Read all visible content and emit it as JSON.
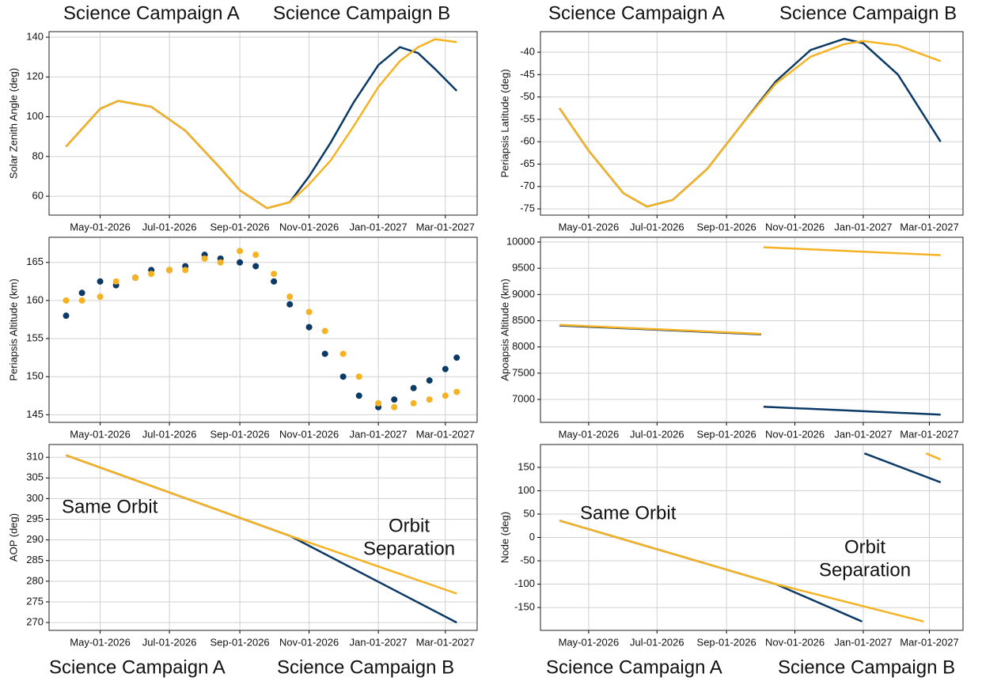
{
  "campaign_labels": [
    "Science Campaign A",
    "Science Campaign B",
    "Science Campaign A",
    "Science Campaign B",
    "Science Campaign A",
    "Science Campaign B",
    "Science Campaign A",
    "Science Campaign B"
  ],
  "chart_data": [
    {
      "type": "line",
      "y_label": "Solar Zenith Angle (deg)",
      "xlim": [
        "2026-03-17",
        "2027-03-29"
      ],
      "xticks": [
        {
          "value": "2026-05-01",
          "label": "May-01-2026"
        },
        {
          "value": "2026-07-01",
          "label": "Jul-01-2026"
        },
        {
          "value": "2026-09-01",
          "label": "Sep-01-2026"
        },
        {
          "value": "2026-11-01",
          "label": "Nov-01-2026"
        },
        {
          "value": "2027-01-01",
          "label": "Jan-01-2027"
        },
        {
          "value": "2027-03-01",
          "label": "Mar-01-2027"
        }
      ],
      "ylim": [
        50.5,
        142.8
      ],
      "yticks": [
        60,
        80,
        100,
        120,
        140
      ],
      "grid": true,
      "series": [
        {
          "color": "#0b3a66",
          "x": [
            "2026-04-01",
            "2026-05-01",
            "2026-05-17",
            "2026-06-15",
            "2026-07-15",
            "2026-08-15",
            "2026-09-01",
            "2026-09-25",
            "2026-10-15",
            "2026-11-01",
            "2026-11-20",
            "2026-12-10",
            "2027-01-01",
            "2027-01-20",
            "2027-02-05",
            "2027-02-20",
            "2027-03-11"
          ],
          "values": [
            85,
            104,
            108,
            105,
            93,
            74,
            63,
            54,
            57,
            70,
            87,
            107,
            126,
            135,
            132,
            124,
            113
          ]
        },
        {
          "color": "#f5b324",
          "x": [
            "2026-04-01",
            "2026-05-01",
            "2026-05-17",
            "2026-06-15",
            "2026-07-15",
            "2026-08-15",
            "2026-09-01",
            "2026-09-25",
            "2026-10-15",
            "2026-11-01",
            "2026-11-20",
            "2026-12-10",
            "2027-01-01",
            "2027-01-20",
            "2027-02-05",
            "2027-02-20",
            "2027-03-11"
          ],
          "values": [
            85,
            104,
            108,
            105,
            93,
            74,
            63,
            54,
            57,
            66,
            78,
            95,
            115,
            128,
            135,
            139,
            137.5
          ]
        }
      ]
    },
    {
      "type": "line",
      "y_label": "Periapsis Latitude (deg)",
      "xlim": [
        "2026-03-19",
        "2027-03-31"
      ],
      "xticks": [
        {
          "value": "2026-05-01",
          "label": "May-01-2026"
        },
        {
          "value": "2026-07-01",
          "label": "Jul-01-2026"
        },
        {
          "value": "2026-09-01",
          "label": "Sep-01-2026"
        },
        {
          "value": "2026-11-01",
          "label": "Nov-01-2026"
        },
        {
          "value": "2027-01-01",
          "label": "Jan-01-2027"
        },
        {
          "value": "2027-03-01",
          "label": "Mar-01-2027"
        }
      ],
      "ylim": [
        -76.4,
        -35.4
      ],
      "yticks": [
        -75,
        -70,
        -65,
        -60,
        -55,
        -50,
        -45,
        -40
      ],
      "grid": true,
      "series": [
        {
          "color": "#0b3a66",
          "x": [
            "2026-04-05",
            "2026-05-01",
            "2026-06-01",
            "2026-06-22",
            "2026-07-15",
            "2026-08-15",
            "2026-09-15",
            "2026-10-15",
            "2026-11-15",
            "2026-12-15",
            "2027-01-01",
            "2027-02-01",
            "2027-03-11"
          ],
          "values": [
            -52.5,
            -62,
            -71.5,
            -74.5,
            -73,
            -66,
            -56,
            -46.5,
            -39.5,
            -37,
            -38,
            -45,
            -60
          ]
        },
        {
          "color": "#f5b324",
          "x": [
            "2026-04-05",
            "2026-05-01",
            "2026-06-01",
            "2026-06-22",
            "2026-07-15",
            "2026-08-15",
            "2026-09-15",
            "2026-10-15",
            "2026-11-15",
            "2026-12-15",
            "2027-01-01",
            "2027-02-01",
            "2027-03-11"
          ],
          "values": [
            -52.5,
            -62,
            -71.5,
            -74.5,
            -73,
            -66,
            -56,
            -47,
            -41,
            -38.2,
            -37.5,
            -38.5,
            -42
          ]
        }
      ]
    },
    {
      "type": "scatter",
      "y_label": "Periapsis Altitude (km)",
      "xlim": [
        "2026-03-17",
        "2027-03-29"
      ],
      "xticks": [
        {
          "value": "2026-05-01",
          "label": "May-01-2026"
        },
        {
          "value": "2026-07-01",
          "label": "Jul-01-2026"
        },
        {
          "value": "2026-09-01",
          "label": "Sep-01-2026"
        },
        {
          "value": "2026-11-01",
          "label": "Nov-01-2026"
        },
        {
          "value": "2027-01-01",
          "label": "Jan-01-2027"
        },
        {
          "value": "2027-03-01",
          "label": "Mar-01-2027"
        }
      ],
      "ylim": [
        144,
        168.3
      ],
      "yticks": [
        145,
        150,
        155,
        160,
        165
      ],
      "grid": true,
      "series": [
        {
          "color": "#0b3a66",
          "x": [
            "2026-04-01",
            "2026-04-15",
            "2026-05-01",
            "2026-05-15",
            "2026-06-01",
            "2026-06-15",
            "2026-07-01",
            "2026-07-15",
            "2026-08-01",
            "2026-08-15",
            "2026-09-01",
            "2026-09-15",
            "2026-10-01",
            "2026-10-15",
            "2026-11-01",
            "2026-11-15",
            "2026-12-01",
            "2026-12-15",
            "2027-01-01",
            "2027-01-15",
            "2027-02-01",
            "2027-02-15",
            "2027-03-01",
            "2027-03-11"
          ],
          "values": [
            158,
            161,
            162.5,
            162,
            163,
            164,
            164,
            164.5,
            166,
            165.5,
            165,
            164.5,
            162.5,
            159.5,
            156.5,
            153,
            150,
            147.5,
            146,
            147,
            148.5,
            149.5,
            151,
            152.5
          ]
        },
        {
          "color": "#f5b324",
          "x": [
            "2026-04-01",
            "2026-04-15",
            "2026-05-01",
            "2026-05-15",
            "2026-06-01",
            "2026-06-15",
            "2026-07-01",
            "2026-07-15",
            "2026-08-01",
            "2026-08-15",
            "2026-09-01",
            "2026-09-15",
            "2026-10-01",
            "2026-10-15",
            "2026-11-01",
            "2026-11-15",
            "2026-12-01",
            "2026-12-15",
            "2027-01-01",
            "2027-01-15",
            "2027-02-01",
            "2027-02-15",
            "2027-03-01",
            "2027-03-11"
          ],
          "values": [
            160,
            160,
            160.5,
            162.5,
            163,
            163.5,
            164,
            164,
            165.5,
            165,
            166.5,
            166,
            163.5,
            160.5,
            158.5,
            156,
            153,
            150,
            146.5,
            146,
            146.5,
            147,
            147.5,
            148
          ]
        }
      ]
    },
    {
      "type": "line",
      "y_label": "Apoapsis Altitude (km)",
      "xlim": [
        "2026-03-19",
        "2027-03-31"
      ],
      "xticks": [
        {
          "value": "2026-05-01",
          "label": "May-01-2026"
        },
        {
          "value": "2026-07-01",
          "label": "Jul-01-2026"
        },
        {
          "value": "2026-09-01",
          "label": "Sep-01-2026"
        },
        {
          "value": "2026-11-01",
          "label": "Nov-01-2026"
        },
        {
          "value": "2027-01-01",
          "label": "Jan-01-2027"
        },
        {
          "value": "2027-03-01",
          "label": "Mar-01-2027"
        }
      ],
      "ylim": [
        6563,
        10090
      ],
      "yticks": [
        7000,
        7500,
        8000,
        8500,
        9000,
        9500,
        10000
      ],
      "grid": true,
      "series": [
        {
          "color": "#0b3a66",
          "x": [
            "2026-04-05",
            "2026-10-02",
            "2026-10-03",
            "2026-10-04",
            "2027-03-11"
          ],
          "values": [
            8410,
            8240,
            null,
            6860,
            6710
          ]
        },
        {
          "color": "#f5b324",
          "x": [
            "2026-04-05",
            "2026-10-02",
            "2026-10-03",
            "2026-10-04",
            "2027-03-11"
          ],
          "values": [
            8420,
            8250,
            null,
            9900,
            9750
          ]
        }
      ]
    },
    {
      "type": "line",
      "y_label": "AOP (deg)",
      "xlim": [
        "2026-03-17",
        "2027-03-29"
      ],
      "xticks": [
        {
          "value": "2026-05-01",
          "label": "May-01-2026"
        },
        {
          "value": "2026-07-01",
          "label": "Jul-01-2026"
        },
        {
          "value": "2026-09-01",
          "label": "Sep-01-2026"
        },
        {
          "value": "2026-11-01",
          "label": "Nov-01-2026"
        },
        {
          "value": "2027-01-01",
          "label": "Jan-01-2027"
        },
        {
          "value": "2027-03-01",
          "label": "Mar-01-2027"
        }
      ],
      "ylim": [
        268.1,
        313.1
      ],
      "yticks": [
        270,
        275,
        280,
        285,
        290,
        295,
        300,
        305,
        310
      ],
      "grid": true,
      "annotations": [
        [
          "Same Orbit"
        ],
        [
          "Orbit",
          "Separation"
        ]
      ],
      "series": [
        {
          "color": "#0b3a66",
          "x": [
            "2026-04-01",
            "2026-10-15",
            "2027-03-11"
          ],
          "values": [
            310.5,
            291,
            270
          ]
        },
        {
          "color": "#f5b324",
          "x": [
            "2026-04-01",
            "2026-10-15",
            "2027-03-11"
          ],
          "values": [
            310.5,
            291,
            277
          ]
        }
      ]
    },
    {
      "type": "line",
      "y_label": "Node (deg)",
      "xlim": [
        "2026-03-19",
        "2027-03-31"
      ],
      "xticks": [
        {
          "value": "2026-05-01",
          "label": "May-01-2026"
        },
        {
          "value": "2026-07-01",
          "label": "Jul-01-2026"
        },
        {
          "value": "2026-09-01",
          "label": "Sep-01-2026"
        },
        {
          "value": "2026-11-01",
          "label": "Nov-01-2026"
        },
        {
          "value": "2027-01-01",
          "label": "Jan-01-2027"
        },
        {
          "value": "2027-03-01",
          "label": "Mar-01-2027"
        }
      ],
      "ylim": [
        -199,
        199
      ],
      "yticks": [
        -150,
        -100,
        -50,
        0,
        50,
        100,
        150
      ],
      "grid": true,
      "annotations": [
        [
          "Same Orbit"
        ],
        [
          "Orbit",
          "Separation"
        ]
      ],
      "series": [
        {
          "color": "#0b3a66",
          "x": [
            "2026-04-05",
            "2026-10-15",
            "2026-12-31",
            "2027-01-01",
            "2027-01-02",
            "2027-03-11"
          ],
          "values": [
            36,
            -100,
            -180,
            null,
            180,
            118
          ]
        },
        {
          "color": "#f5b324",
          "x": [
            "2026-04-05",
            "2026-10-15",
            "2027-02-24",
            "2027-02-25",
            "2027-02-26",
            "2027-03-11"
          ],
          "values": [
            36,
            -100,
            -180,
            null,
            180,
            167
          ]
        }
      ]
    }
  ]
}
